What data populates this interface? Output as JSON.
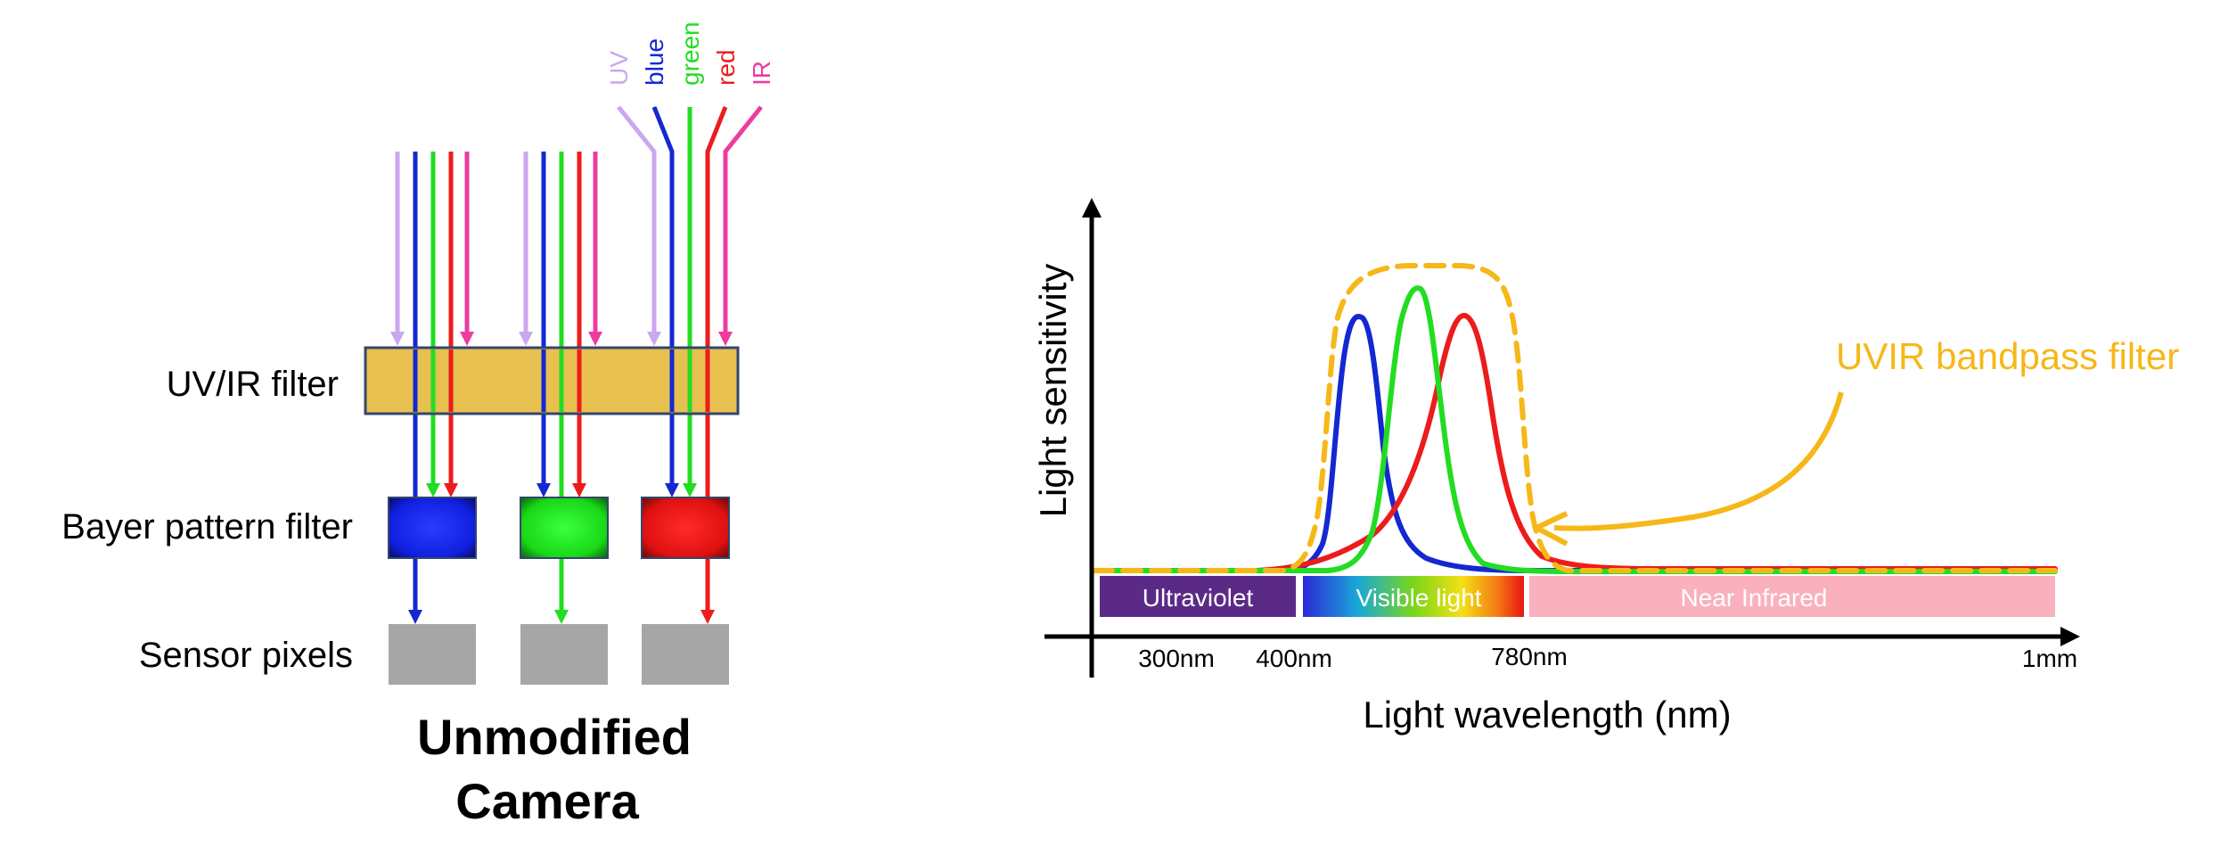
{
  "colors": {
    "uv": "#c9a8ee",
    "blue": "#1428d2",
    "green": "#22dd22",
    "red": "#ec1c1c",
    "ir": "#ec3ca0",
    "filter_fill": "#e8c050",
    "filter_edge": "#33466e",
    "sensor": "#a6a6a6",
    "bandpass": "#f5b818",
    "ultraviolet_band": "#5b2a86",
    "infrared_band": "#fbb0be"
  },
  "left": {
    "rays_legend": [
      {
        "key": "uv",
        "label": "UV"
      },
      {
        "key": "blue",
        "label": "blue"
      },
      {
        "key": "green",
        "label": "green"
      },
      {
        "key": "red",
        "label": "red"
      },
      {
        "key": "ir",
        "label": "IR"
      }
    ],
    "labels": {
      "uvir_filter": "UV/IR filter",
      "bayer_filter": "Bayer pattern filter",
      "sensor_pixels": "Sensor pixels"
    },
    "title_line1": "Unmodified",
    "title_line2": "Camera"
  },
  "chart_data": {
    "type": "line",
    "title": "",
    "xlabel": "Light wavelength (nm)",
    "ylabel": "Light sensitivity",
    "x_ticks": [
      "300nm",
      "400nm",
      "780nm",
      "1mm"
    ],
    "x_scale": "schematic (non-linear)",
    "ylim": [
      0,
      1
    ],
    "series": [
      {
        "name": "blue",
        "peak_wavelength_nm": 460,
        "peak": 0.9
      },
      {
        "name": "green",
        "peak_wavelength_nm": 540,
        "peak": 1.0
      },
      {
        "name": "red",
        "peak_wavelength_nm": 610,
        "peak": 0.9
      },
      {
        "name": "UVIR bandpass filter",
        "passband_nm": [
          400,
          780
        ],
        "level": 1.08,
        "baseline": 0.0
      }
    ],
    "bands": [
      {
        "label": "Ultraviolet",
        "from": "300nm",
        "to": "400nm"
      },
      {
        "label": "Visible light",
        "from": "400nm",
        "to": "780nm"
      },
      {
        "label": "Near Infrared",
        "from": "780nm",
        "to": "1mm"
      }
    ],
    "annotation": "UVIR bandpass filter"
  }
}
